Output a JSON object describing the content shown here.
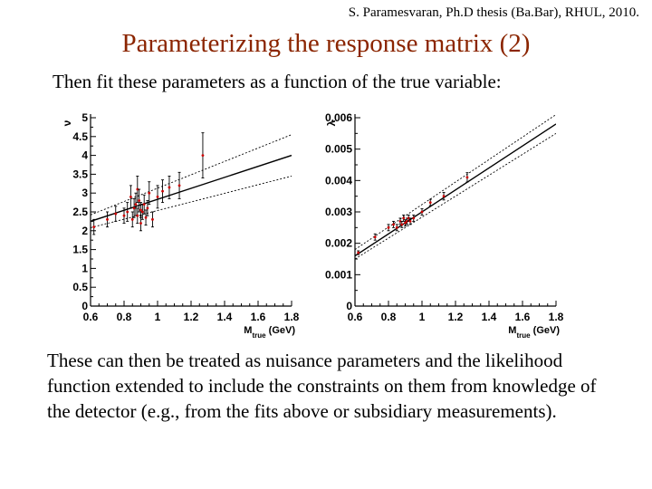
{
  "header": {
    "attribution": "S. Paramesvaran, Ph.D thesis (Ba.Bar), RHUL, 2010.",
    "title": "Parameterizing the response matrix (2)",
    "intro": "Then fit these parameters as a function of the true variable:"
  },
  "footer_text": "These can then be treated as nuisance parameters and the likelihood function extended to include the constraints on them from knowledge of the detector (e.g., from the fits above or subsidiary measurements).",
  "colors": {
    "title": "#8b2500",
    "points": "#cc0000",
    "errorbars": "#000000",
    "fit": "#000000"
  },
  "chart_data": [
    {
      "type": "scatter",
      "xlabel": "M_true (GeV)",
      "ylabel": "ν",
      "xlim": [
        0.6,
        1.8
      ],
      "ylim": [
        0,
        5
      ],
      "xticks": [
        "0.6",
        "0.8",
        "1",
        "1.2",
        "1.4",
        "1.6",
        "1.8"
      ],
      "yticks": [
        "0",
        "0.5",
        "1",
        "1.5",
        "2",
        "2.5",
        "3",
        "3.5",
        "4",
        "4.5",
        "5"
      ],
      "fit_line": {
        "x": [
          0.6,
          1.8
        ],
        "y": [
          2.25,
          4.0
        ]
      },
      "fit_band_upper": {
        "x": [
          0.6,
          1.8
        ],
        "y": [
          2.42,
          4.55
        ]
      },
      "fit_band_lower": {
        "x": [
          0.6,
          1.8
        ],
        "y": [
          2.08,
          3.45
        ]
      },
      "points": [
        {
          "x": 0.62,
          "y": 2.1,
          "err": 0.2
        },
        {
          "x": 0.7,
          "y": 2.3,
          "err": 0.2
        },
        {
          "x": 0.75,
          "y": 2.45,
          "err": 0.2
        },
        {
          "x": 0.8,
          "y": 2.4,
          "err": 0.2
        },
        {
          "x": 0.82,
          "y": 2.5,
          "err": 0.25
        },
        {
          "x": 0.84,
          "y": 2.9,
          "err": 0.3
        },
        {
          "x": 0.85,
          "y": 2.3,
          "err": 0.2
        },
        {
          "x": 0.86,
          "y": 2.6,
          "err": 0.25
        },
        {
          "x": 0.87,
          "y": 2.7,
          "err": 0.3
        },
        {
          "x": 0.88,
          "y": 2.4,
          "err": 0.2
        },
        {
          "x": 0.88,
          "y": 3.1,
          "err": 0.35
        },
        {
          "x": 0.89,
          "y": 2.8,
          "err": 0.3
        },
        {
          "x": 0.9,
          "y": 2.55,
          "err": 0.2
        },
        {
          "x": 0.9,
          "y": 2.2,
          "err": 0.2
        },
        {
          "x": 0.91,
          "y": 2.5,
          "err": 0.2
        },
        {
          "x": 0.92,
          "y": 2.7,
          "err": 0.25
        },
        {
          "x": 0.93,
          "y": 2.35,
          "err": 0.2
        },
        {
          "x": 0.94,
          "y": 2.6,
          "err": 0.2
        },
        {
          "x": 0.95,
          "y": 3.0,
          "err": 0.3
        },
        {
          "x": 0.97,
          "y": 2.3,
          "err": 0.2
        },
        {
          "x": 1.0,
          "y": 2.9,
          "err": 0.3
        },
        {
          "x": 1.03,
          "y": 3.05,
          "err": 0.3
        },
        {
          "x": 1.07,
          "y": 3.15,
          "err": 0.3
        },
        {
          "x": 1.13,
          "y": 3.2,
          "err": 0.35
        },
        {
          "x": 1.27,
          "y": 4.0,
          "err": 0.6
        }
      ]
    },
    {
      "type": "scatter",
      "xlabel": "M_true (GeV)",
      "ylabel": "λ",
      "xlim": [
        0.6,
        1.8
      ],
      "ylim": [
        0,
        0.006
      ],
      "xticks": [
        "0.6",
        "0.8",
        "1",
        "1.2",
        "1.4",
        "1.6",
        "1.8"
      ],
      "yticks": [
        "0",
        "0.001",
        "0.002",
        "0.003",
        "0.004",
        "0.005",
        "0.006"
      ],
      "fit_line": {
        "x": [
          0.6,
          1.8
        ],
        "y": [
          0.0016,
          0.0058
        ]
      },
      "fit_band_upper": {
        "x": [
          0.6,
          1.8
        ],
        "y": [
          0.0018,
          0.0061
        ]
      },
      "fit_band_lower": {
        "x": [
          0.6,
          1.8
        ],
        "y": [
          0.0015,
          0.0055
        ]
      },
      "points": [
        {
          "x": 0.62,
          "y": 0.0017,
          "err": 6e-05
        },
        {
          "x": 0.72,
          "y": 0.0022,
          "err": 0.0001
        },
        {
          "x": 0.8,
          "y": 0.0025,
          "err": 0.0001
        },
        {
          "x": 0.83,
          "y": 0.0026,
          "err": 0.0001
        },
        {
          "x": 0.85,
          "y": 0.0025,
          "err": 0.0001
        },
        {
          "x": 0.87,
          "y": 0.0027,
          "err": 0.0001
        },
        {
          "x": 0.88,
          "y": 0.0026,
          "err": 0.0001
        },
        {
          "x": 0.89,
          "y": 0.0028,
          "err": 0.0001
        },
        {
          "x": 0.9,
          "y": 0.00265,
          "err": 0.0001
        },
        {
          "x": 0.91,
          "y": 0.0027,
          "err": 0.0001
        },
        {
          "x": 0.92,
          "y": 0.0028,
          "err": 0.0001
        },
        {
          "x": 0.93,
          "y": 0.0027,
          "err": 0.0001
        },
        {
          "x": 0.95,
          "y": 0.0028,
          "err": 0.0001
        },
        {
          "x": 1.0,
          "y": 0.003,
          "err": 0.0001
        },
        {
          "x": 1.05,
          "y": 0.0033,
          "err": 0.0001
        },
        {
          "x": 1.13,
          "y": 0.0035,
          "err": 0.00012
        },
        {
          "x": 1.27,
          "y": 0.0041,
          "err": 0.00015
        }
      ]
    }
  ]
}
